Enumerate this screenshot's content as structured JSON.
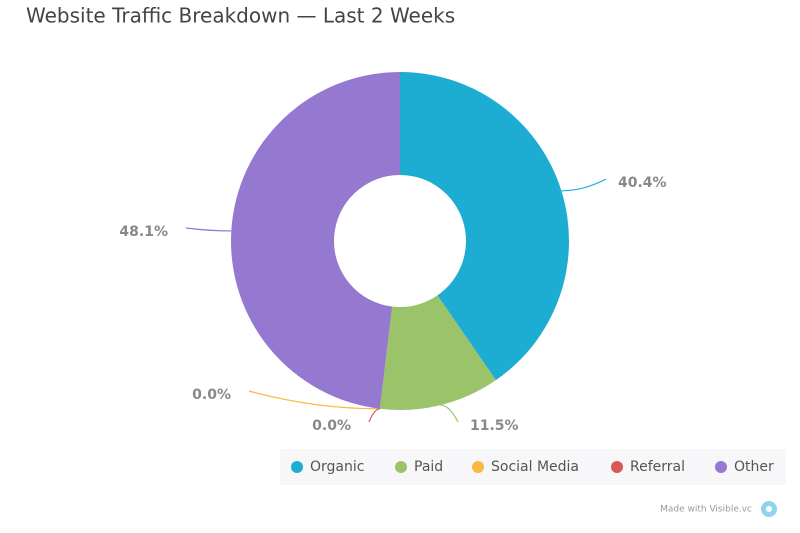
{
  "chart_data": {
    "type": "donut",
    "title": "Website Traffic Breakdown — Last 2 Weeks",
    "categories": [
      "Organic",
      "Paid",
      "Social Media",
      "Referral",
      "Other"
    ],
    "values": [
      40.4,
      11.5,
      0.0,
      0.0,
      48.1
    ],
    "value_labels": [
      "40.4%",
      "11.5%",
      "0.0%",
      "0.0%",
      "48.1%"
    ],
    "colors": [
      "#1eadd2",
      "#9bc36a",
      "#f9b842",
      "#d95757",
      "#9578cf"
    ],
    "legend": "bottom"
  },
  "footer": "Made with Visible.vc"
}
